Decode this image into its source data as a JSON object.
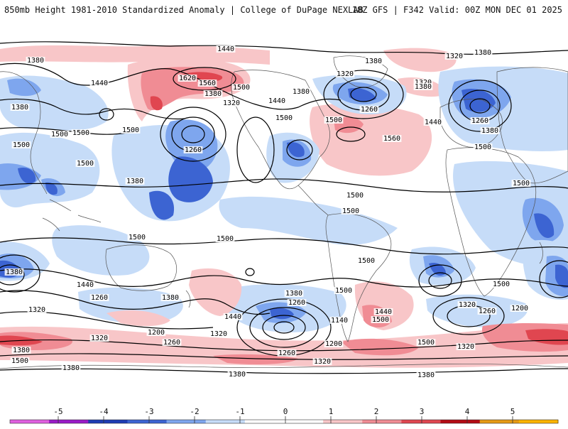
{
  "header": {
    "title": "850mb Height 1981-2010 Standardized Anomaly | College of DuPage NEXLAB",
    "run_info": "18Z GFS | F342 Valid: 00Z MON DEC 01 2025"
  },
  "contour_labels": [
    {
      "text": "1440"
    },
    {
      "text": "1380"
    },
    {
      "text": "1320"
    },
    {
      "text": "1440"
    },
    {
      "text": "1380"
    },
    {
      "text": "1620"
    },
    {
      "text": "1560"
    },
    {
      "text": "1500"
    },
    {
      "text": "1380"
    },
    {
      "text": "1320"
    },
    {
      "text": "1440"
    },
    {
      "text": "1500"
    },
    {
      "text": "1260"
    },
    {
      "text": "1500"
    },
    {
      "text": "1500"
    },
    {
      "text": "1380"
    },
    {
      "text": "1320"
    },
    {
      "text": "1320"
    },
    {
      "text": "1380"
    },
    {
      "text": "1380"
    },
    {
      "text": "1260"
    },
    {
      "text": "1500"
    },
    {
      "text": "1560"
    },
    {
      "text": "1440"
    },
    {
      "text": "1380"
    },
    {
      "text": "1260"
    },
    {
      "text": "1500"
    },
    {
      "text": "1500"
    },
    {
      "text": "1380"
    },
    {
      "text": "1500"
    },
    {
      "text": "1500"
    },
    {
      "text": "1500"
    },
    {
      "text": "1500"
    },
    {
      "text": "1500"
    },
    {
      "text": "1500"
    },
    {
      "text": "1500"
    },
    {
      "text": "1500"
    },
    {
      "text": "1500"
    },
    {
      "text": "1380"
    },
    {
      "text": "1440"
    },
    {
      "text": "1320"
    },
    {
      "text": "1260"
    },
    {
      "text": "1380"
    },
    {
      "text": "1440"
    },
    {
      "text": "1320"
    },
    {
      "text": "1200"
    },
    {
      "text": "1260"
    },
    {
      "text": "1320"
    },
    {
      "text": "1380"
    },
    {
      "text": "1500"
    },
    {
      "text": "1380"
    },
    {
      "text": "1380"
    },
    {
      "text": "1260"
    },
    {
      "text": "1140"
    },
    {
      "text": "1200"
    },
    {
      "text": "1260"
    },
    {
      "text": "1320"
    },
    {
      "text": "1380"
    },
    {
      "text": "1440"
    },
    {
      "text": "1500"
    },
    {
      "text": "1500"
    },
    {
      "text": "1320"
    },
    {
      "text": "1260"
    },
    {
      "text": "1200"
    },
    {
      "text": "1320"
    },
    {
      "text": "1380"
    },
    {
      "text": "1380"
    },
    {
      "text": "1500"
    }
  ],
  "colorbar": {
    "ticks": [
      "-5",
      "-4",
      "-3",
      "-2",
      "-1",
      "0",
      "1",
      "2",
      "3",
      "4",
      "5"
    ],
    "colors": [
      "#e060e0",
      "#9a1ac8",
      "#1e3cb4",
      "#3c64d2",
      "#7ea6ee",
      "#c6dcf8",
      "#ffffff",
      "#ffffff",
      "#f8c6c8",
      "#f08c94",
      "#e04650",
      "#b40a14",
      "#e69a14",
      "#ffb400"
    ]
  }
}
